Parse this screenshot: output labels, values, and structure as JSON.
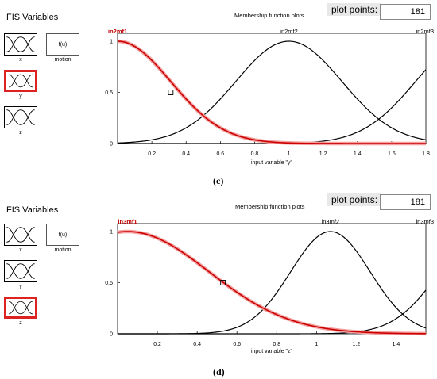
{
  "panels": [
    {
      "fis_title": "FIS Variables",
      "variables": [
        {
          "label": "x",
          "selected": false
        },
        {
          "label": "y",
          "selected": true
        },
        {
          "label": "z",
          "selected": false
        }
      ],
      "output": {
        "box_label": "f(u)",
        "label": "motion"
      },
      "plot_title": "Membership function plots",
      "plot_points_label": "plot points:",
      "plot_points_value": "181",
      "caption": "(c)",
      "chart_data": {
        "type": "line",
        "xlabel": "input variable \"y\"",
        "xlim": [
          0,
          1.8
        ],
        "ylim": [
          0,
          1
        ],
        "xticks": [
          "0.2",
          "0.4",
          "0.6",
          "0.8",
          "1",
          "1.2",
          "1.4",
          "1.6",
          "1.8"
        ],
        "yticks": [
          "0",
          "0.5",
          "1"
        ],
        "selected_series": "in2mf1",
        "series": [
          {
            "name": "in2mf1",
            "center": 0.0,
            "sigma": 0.31,
            "color": "#cc0000"
          },
          {
            "name": "in2mf2",
            "center": 1.0,
            "sigma": 0.31,
            "color": "#000000"
          },
          {
            "name": "in2mf3",
            "center": 2.05,
            "sigma": 0.31,
            "color": "#000000"
          }
        ],
        "marker": {
          "x": 0.31,
          "y": 0.5
        }
      }
    },
    {
      "fis_title": "FIS Variables",
      "variables": [
        {
          "label": "x",
          "selected": false
        },
        {
          "label": "y",
          "selected": false
        },
        {
          "label": "z",
          "selected": true
        }
      ],
      "output": {
        "box_label": "f(u)",
        "label": "motion"
      },
      "plot_title": "Membership function plots",
      "plot_points_label": "plot points:",
      "plot_points_value": "181",
      "caption": "(d)",
      "chart_data": {
        "type": "line",
        "xlabel": "input variable \"z\"",
        "xlim": [
          0,
          1.55
        ],
        "ylim": [
          0,
          1
        ],
        "xticks": [
          "0.2",
          "0.4",
          "0.6",
          "0.8",
          "1",
          "1.2",
          "1.4"
        ],
        "yticks": [
          "0",
          "0.5",
          "1"
        ],
        "selected_series": "in3mf1",
        "series": [
          {
            "name": "in3mf1",
            "center": 0.05,
            "sigma": 0.41,
            "color": "#cc0000"
          },
          {
            "name": "in3mf2",
            "center": 1.07,
            "sigma": 0.2,
            "color": "#000000"
          },
          {
            "name": "in3mf3",
            "center": 1.85,
            "sigma": 0.23,
            "color": "#000000"
          }
        ],
        "marker": {
          "x": 0.53,
          "y": 0.5
        }
      }
    }
  ]
}
